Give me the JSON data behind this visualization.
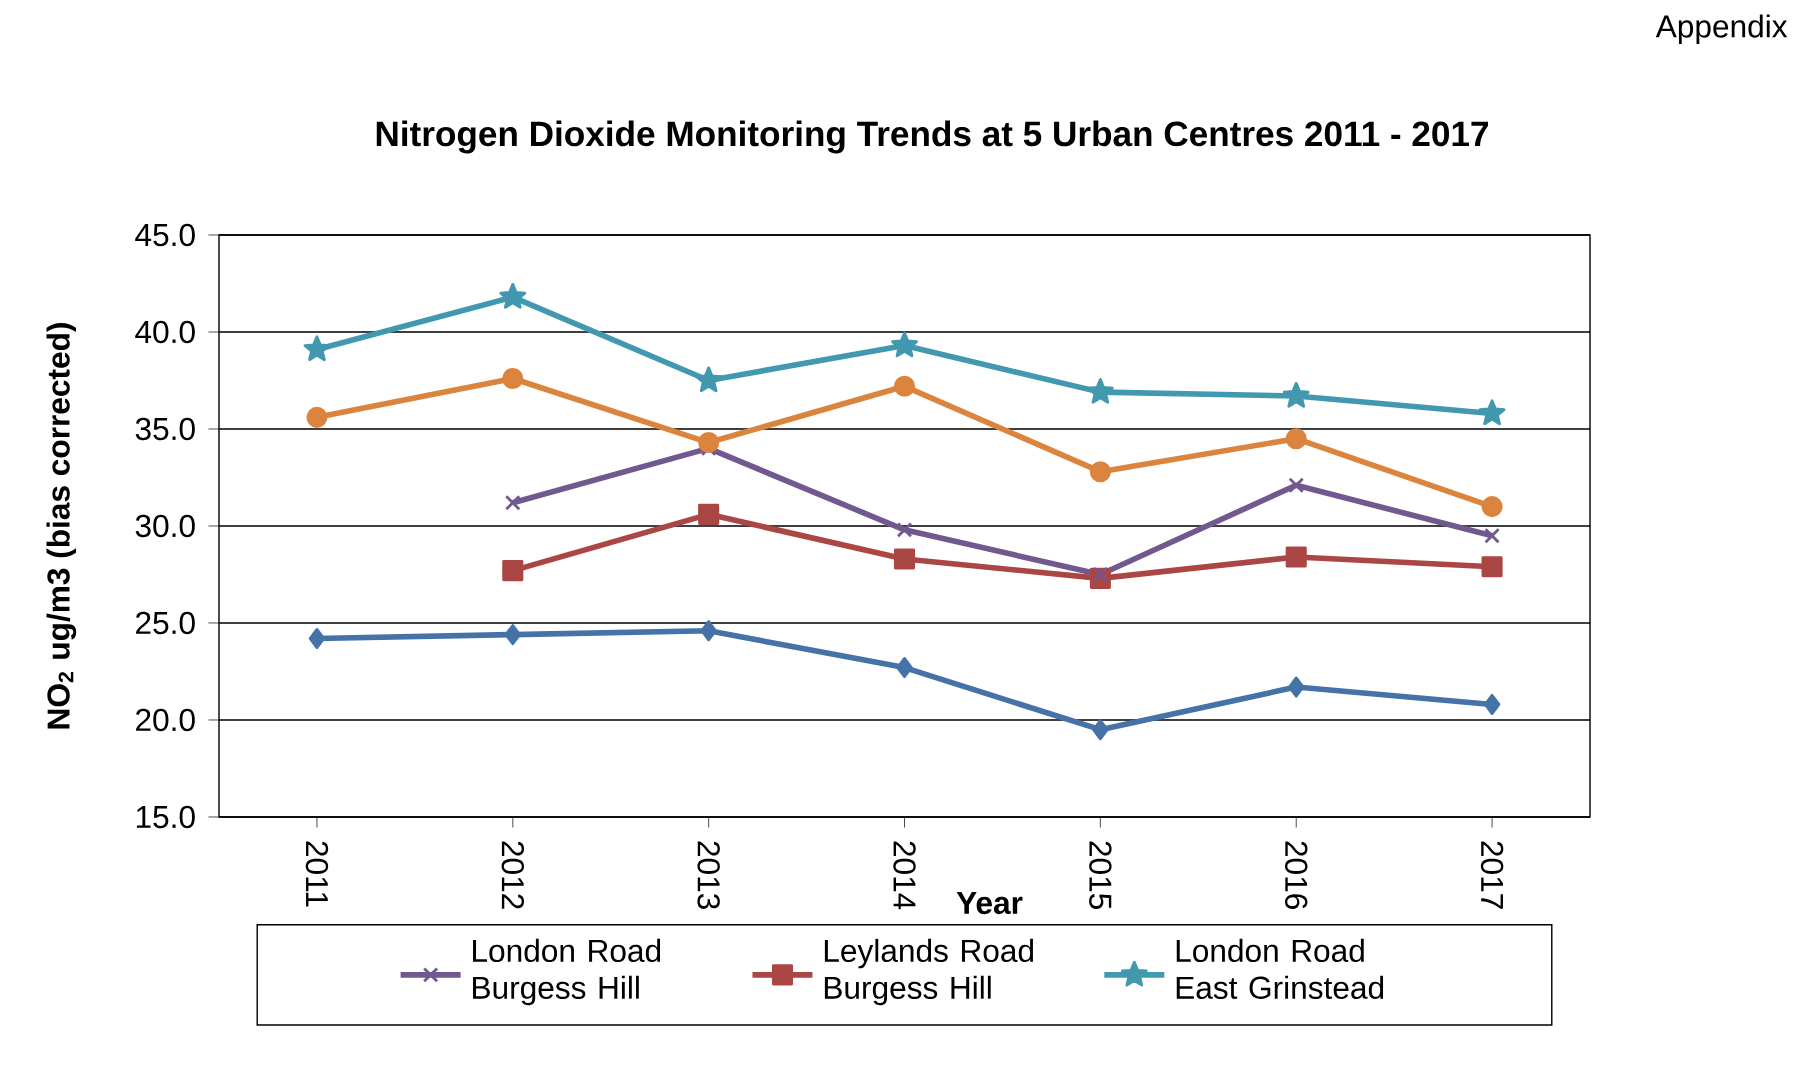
{
  "chart_data": {
    "type": "line",
    "title": "Nitrogen Dioxide Monitoring Trends at 5 Urban Centres 2011 - 2017",
    "xlabel": "Year",
    "ylabel": "NO$_{2}$ ug/m3 (bias corrected)",
    "annotations": [
      "Appendix"
    ],
    "categories": [
      "2011",
      "2012",
      "2013",
      "2014",
      "2015",
      "2016",
      "2017"
    ],
    "ylim": [
      15,
      45
    ],
    "yticks": [
      {
        "value": 15,
        "label": "15.0"
      },
      {
        "value": 20,
        "label": "20.0"
      },
      {
        "value": 25,
        "label": "25.0"
      },
      {
        "value": 30,
        "label": "30.0"
      },
      {
        "value": 35,
        "label": "35.0"
      },
      {
        "value": 40,
        "label": "40.0"
      },
      {
        "value": 45,
        "label": "45.0"
      }
    ],
    "grid": "y",
    "legend": "bottom",
    "line_style": "solid",
    "series": [
      {
        "color": "#4572a7",
        "marker": "diamond",
        "values": [
          24.2,
          24.4,
          24.6,
          22.7,
          19.5,
          21.7,
          20.8
        ]
      },
      {
        "color": "#db843d",
        "marker": "circle",
        "values": [
          35.6,
          37.6,
          34.3,
          37.2,
          32.8,
          34.5,
          31.0
        ]
      },
      {
        "name": "London Road Burgess Hill",
        "color": "#71588f",
        "marker": "cross",
        "values": [
          null,
          31.2,
          34.0,
          29.8,
          27.5,
          32.1,
          29.5
        ]
      },
      {
        "name": "Leylands Road Burgess Hill",
        "color": "#aa4643",
        "marker": "square",
        "values": [
          null,
          27.7,
          30.6,
          28.3,
          27.3,
          28.4,
          27.9
        ]
      },
      {
        "name": "London Road East Grinstead",
        "color": "#4198af",
        "marker": "star",
        "values": [
          39.1,
          41.8,
          37.5,
          39.3,
          36.9,
          36.7,
          35.8
        ]
      }
    ]
  }
}
